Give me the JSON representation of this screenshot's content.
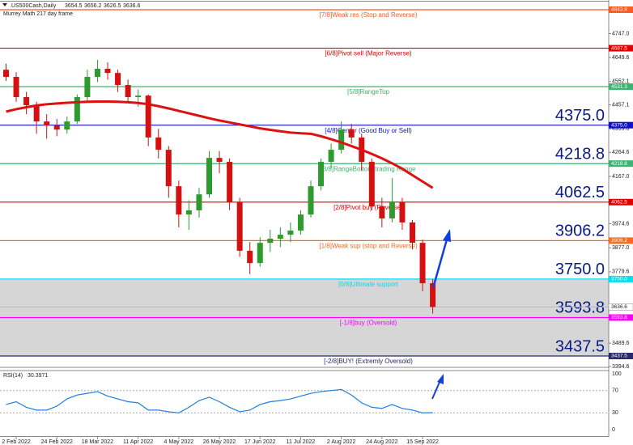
{
  "chart_data": {
    "type": "candlestick",
    "title": ".US500Cash,Daily",
    "quote": [
      3654.5,
      3656.2,
      3626.5,
      3636.6
    ],
    "subtitle": "Murrey Math 217 day frame",
    "categories": [
      null,
      "2 Feb 2022",
      null,
      null,
      null,
      "24 Feb 2022",
      null,
      null,
      null,
      "18 Mar 2022",
      null,
      null,
      null,
      "11 Apr 2022",
      null,
      null,
      null,
      "4 May 2022",
      null,
      null,
      null,
      "26 May 2022",
      null,
      null,
      null,
      "17 Jun 2022",
      null,
      null,
      null,
      "11 Jul 2022",
      null,
      null,
      null,
      "2 Aug 2022",
      null,
      null,
      null,
      "24 Aug 2022",
      null,
      null,
      null,
      "15 Sep 2022",
      null
    ],
    "ohlc": [
      [
        4600,
        4625,
        4555,
        4571
      ],
      [
        4571,
        4590,
        4470,
        4489
      ],
      [
        4489,
        4510,
        4420,
        4456
      ],
      [
        4456,
        4470,
        4340,
        4390
      ],
      [
        4390,
        4420,
        4320,
        4374
      ],
      [
        4374,
        4400,
        4330,
        4357
      ],
      [
        4357,
        4410,
        4340,
        4390
      ],
      [
        4390,
        4500,
        4380,
        4489
      ],
      [
        4489,
        4600,
        4470,
        4571
      ],
      [
        4571,
        4640,
        4550,
        4604
      ],
      [
        4604,
        4630,
        4560,
        4587
      ],
      [
        4587,
        4600,
        4510,
        4538
      ],
      [
        4538,
        4560,
        4470,
        4489
      ],
      [
        4489,
        4520,
        4450,
        4495
      ],
      [
        4495,
        4500,
        4290,
        4325
      ],
      [
        4325,
        4360,
        4240,
        4275
      ],
      [
        4275,
        4290,
        4080,
        4127
      ],
      [
        4127,
        4150,
        3960,
        4012
      ],
      [
        4012,
        4070,
        3950,
        4029
      ],
      [
        4029,
        4120,
        4000,
        4094
      ],
      [
        4094,
        4270,
        4080,
        4242
      ],
      [
        4242,
        4270,
        4180,
        4226
      ],
      [
        4226,
        4240,
        4030,
        4062
      ],
      [
        4062,
        4080,
        3840,
        3865
      ],
      [
        3865,
        3900,
        3770,
        3815
      ],
      [
        3815,
        3920,
        3800,
        3897
      ],
      [
        3897,
        3950,
        3860,
        3914
      ],
      [
        3914,
        3960,
        3880,
        3930
      ],
      [
        3930,
        3980,
        3900,
        3947
      ],
      [
        3947,
        4030,
        3930,
        4012
      ],
      [
        4012,
        4150,
        4000,
        4127
      ],
      [
        4127,
        4240,
        4110,
        4226
      ],
      [
        4226,
        4300,
        4200,
        4275
      ],
      [
        4275,
        4390,
        4260,
        4357
      ],
      [
        4357,
        4380,
        4300,
        4325
      ],
      [
        4325,
        4340,
        4190,
        4226
      ],
      [
        4226,
        4240,
        4030,
        4045
      ],
      [
        4045,
        4080,
        3960,
        3996
      ],
      [
        3996,
        4160,
        3980,
        4062
      ],
      [
        4062,
        4080,
        3950,
        3980
      ],
      [
        3980,
        3990,
        3870,
        3897
      ],
      [
        3897,
        3910,
        3700,
        3733
      ],
      [
        3733,
        3750,
        3610,
        3636.6
      ]
    ],
    "up_color": "#2e9b2e",
    "down_color": "#d41010",
    "moving_average": {
      "color": "#dd1111",
      "values": [
        4430,
        4440,
        4448,
        4455,
        4460,
        4463,
        4466,
        4468,
        4470,
        4471,
        4471,
        4470,
        4468,
        4465,
        4460,
        4452,
        4443,
        4433,
        4423,
        4413,
        4403,
        4394,
        4386,
        4378,
        4370,
        4362,
        4356,
        4350,
        4345,
        4342,
        4340,
        4330,
        4318,
        4305,
        4290,
        4275,
        4258,
        4240,
        4220,
        4198,
        4172,
        4146,
        4120
      ]
    },
    "ylim": [
      3394.8,
      4876.7
    ],
    "yticks": [
      {
        "value": 4747.0,
        "label": "4747.0"
      },
      4649.6,
      4552.1,
      4457.1,
      4359.6,
      4264.6,
      {
        "value": 4167.0,
        "label": "4167.0"
      },
      3974.6,
      {
        "value": 3877.0,
        "label": "3877.0"
      },
      3779.6,
      3489.6,
      3394.6
    ],
    "levels": [
      {
        "value": 4843.8,
        "label": "4843.8",
        "name": "[7/8]Weak res (Stop and Reverse)",
        "color": "#ff5a1f",
        "big": false
      },
      {
        "value": 4687.5,
        "label": "4687.5",
        "name": "[6/8]Pivot sell (Major Reverse)",
        "color": "#e00000",
        "big": false
      },
      {
        "value": 4531.3,
        "label": "4531.3",
        "name": "[5/8]RangeTop",
        "color": "#3cb371",
        "big": false
      },
      {
        "value": 4375.0,
        "label": "4375.0",
        "name": "[4/8]Center (Good Buy or Sell)",
        "color": "#1010cc",
        "big": true
      },
      {
        "value": 4218.8,
        "label": "4218.8",
        "name": "[3/8]RangeBottom trading Range",
        "color": "#3cb371",
        "big": true
      },
      {
        "value": 4062.5,
        "label": "4062.5",
        "name": "[2/8]Pivot buy (Reverse)",
        "color": "#e00000",
        "big": true
      },
      {
        "value": 3906.2,
        "label": "3906.2",
        "name": "[1/8]Weak sup (stop and Reverse)",
        "color": "#ff6a1f",
        "big": true
      },
      {
        "value": 3750.0,
        "label": "3750.0",
        "name": "[0/8]Ultimate support",
        "color": "#00e0ee",
        "big": true
      },
      {
        "value": 3593.8,
        "label": "3593.8",
        "name": "[-1/8]buy (Oversold)",
        "color": "#ff00ff",
        "big": true
      },
      {
        "value": 3437.5,
        "label": "3437.5",
        "name": "[-2/8]BUY! (Extremly Oversold)",
        "color": "#2a2a6a",
        "big": true
      }
    ],
    "rsi": {
      "name": "RSI(14)",
      "color": "#1e7fe0",
      "ylim": [
        0,
        100
      ],
      "yticks": [
        100,
        70,
        30,
        0
      ],
      "values": [
        45,
        50,
        40,
        35,
        35,
        42,
        55,
        62,
        65,
        68,
        60,
        55,
        50,
        48,
        35,
        35,
        32,
        30,
        40,
        52,
        58,
        50,
        40,
        32,
        35,
        45,
        50,
        52,
        55,
        60,
        65,
        68,
        70,
        72,
        62,
        48,
        40,
        38,
        45,
        38,
        35,
        30,
        30.3971
      ]
    }
  }
}
